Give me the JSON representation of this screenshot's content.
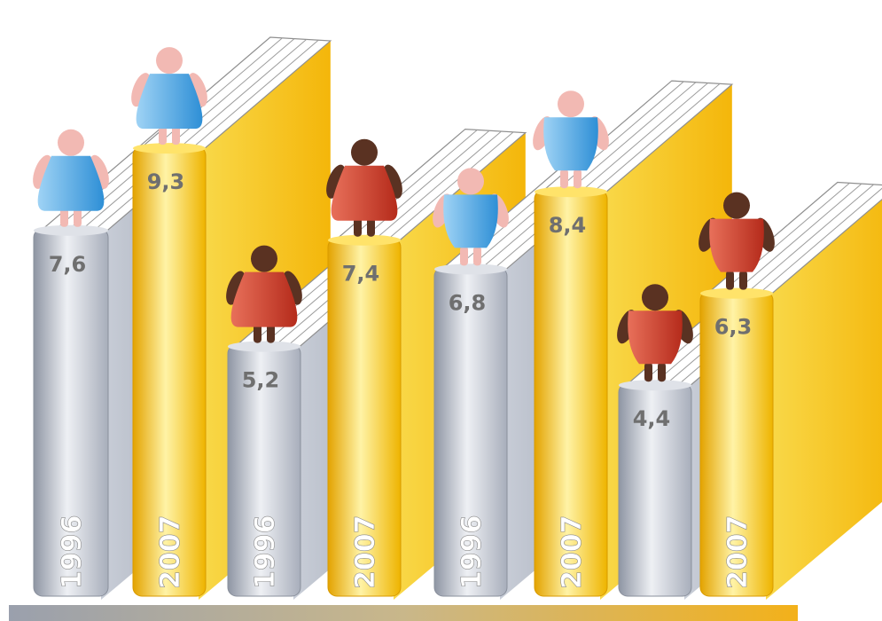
{
  "chart_data": {
    "type": "bar",
    "title": "",
    "xlabel": "",
    "ylabel": "",
    "ylim": [
      0,
      10
    ],
    "grid": false,
    "legend": "none",
    "categories": [
      "pair-1",
      "pair-2",
      "pair-3",
      "pair-4"
    ],
    "bars": [
      {
        "year": "1996",
        "value_label": "7,6",
        "value": 7.6,
        "figure": "blue-woman",
        "book": "gray"
      },
      {
        "year": "2007",
        "value_label": "9,3",
        "value": 9.3,
        "figure": "blue-woman",
        "book": "yellow"
      },
      {
        "year": "1996",
        "value_label": "5,2",
        "value": 5.2,
        "figure": "red-woman",
        "book": "gray"
      },
      {
        "year": "2007",
        "value_label": "7,4",
        "value": 7.4,
        "figure": "red-woman",
        "book": "yellow"
      },
      {
        "year": "1996",
        "value_label": "6,8",
        "value": 6.8,
        "figure": "blue-man",
        "book": "gray"
      },
      {
        "year": "2007",
        "value_label": "8,4",
        "value": 8.4,
        "figure": "blue-man",
        "book": "yellow"
      },
      {
        "year": "",
        "value_label": "4,4",
        "value": 4.4,
        "figure": "red-man",
        "book": "gray"
      },
      {
        "year": "2007",
        "value_label": "6,3",
        "value": 6.3,
        "figure": "red-man",
        "book": "yellow"
      }
    ]
  },
  "colors": {
    "gray_book": "#b9bfcc",
    "yellow_book": "#f5c20f",
    "blue_figure": "#4aa7e4",
    "red_figure": "#d2402c",
    "skin_light": "#f2b9b3",
    "skin_dark": "#5a3222",
    "base_bar_left": "#9aa0ad",
    "base_bar_right": "#f3b11a"
  }
}
